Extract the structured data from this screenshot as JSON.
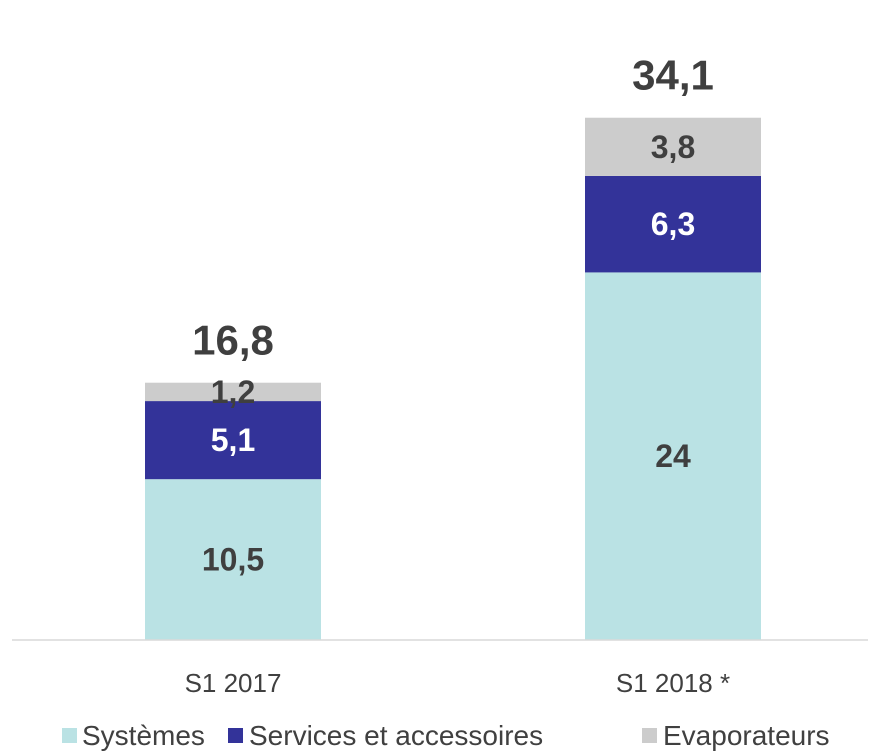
{
  "chart_data": {
    "type": "bar",
    "stacked": true,
    "categories": [
      "S1 2017",
      "S1 2018 *"
    ],
    "series": [
      {
        "name": "Systèmes",
        "values": [
          10.5,
          24
        ],
        "labels": [
          "10,5",
          "24"
        ],
        "color": "#bae2e4",
        "label_color": "#3f3f3f"
      },
      {
        "name": "Services et accessoires",
        "values": [
          5.1,
          6.3
        ],
        "labels": [
          "5,1",
          "6,3"
        ],
        "color": "#333399",
        "label_color": "#ffffff"
      },
      {
        "name": "Evaporateurs",
        "values": [
          1.2,
          3.8
        ],
        "labels": [
          "1,2",
          "3,8"
        ],
        "color": "#cccccc",
        "label_color": "#3f3f3f"
      }
    ],
    "totals": [
      16.8,
      34.1
    ],
    "total_labels": [
      "16,8",
      "34,1"
    ],
    "ylim": [
      0,
      38
    ],
    "grid": false,
    "legend": "bottom"
  }
}
